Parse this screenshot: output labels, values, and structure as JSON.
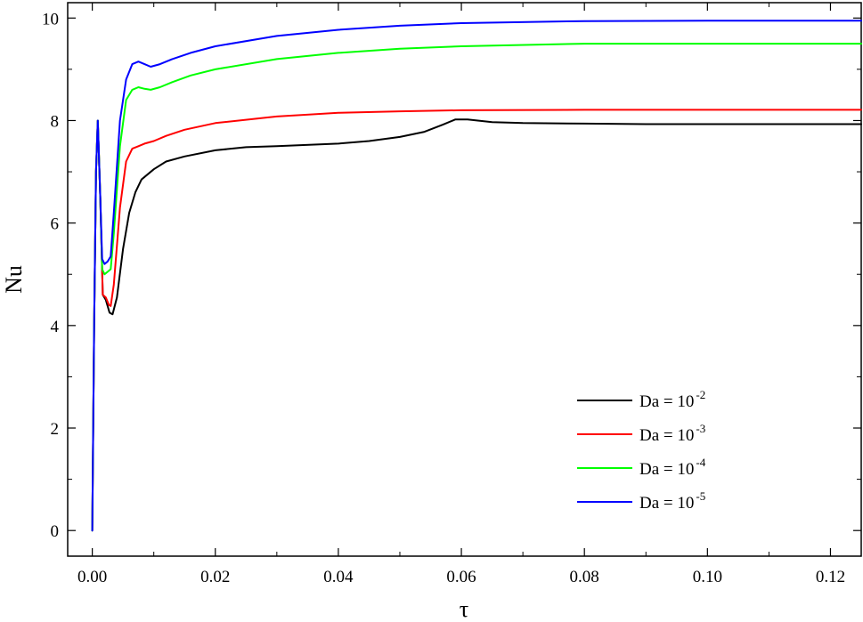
{
  "chart_data": {
    "type": "line",
    "title": "",
    "xlabel": "τ",
    "ylabel": "Nu",
    "xlim": [
      -0.004,
      0.125
    ],
    "ylim": [
      -0.5,
      10.3
    ],
    "xticks": [
      0.0,
      0.02,
      0.04,
      0.06,
      0.08,
      0.1,
      0.12
    ],
    "xtick_labels": [
      "0.00",
      "0.02",
      "0.04",
      "0.06",
      "0.08",
      "0.10",
      "0.12"
    ],
    "yticks": [
      0,
      2,
      4,
      6,
      8,
      10
    ],
    "ytick_labels": [
      "0",
      "2",
      "4",
      "6",
      "8",
      "10"
    ],
    "grid": false,
    "legend_position": "bottom-right",
    "series": [
      {
        "name": "Da = 10-2",
        "label_base": "Da = 10",
        "label_exp": "-2",
        "color": "#000000",
        "points": [
          [
            0.0,
            0.0
          ],
          [
            0.0003,
            4.0
          ],
          [
            0.0006,
            7.0
          ],
          [
            0.0009,
            8.0
          ],
          [
            0.0013,
            6.5
          ],
          [
            0.0017,
            4.6
          ],
          [
            0.0022,
            4.5
          ],
          [
            0.0028,
            4.25
          ],
          [
            0.0033,
            4.22
          ],
          [
            0.004,
            4.55
          ],
          [
            0.005,
            5.5
          ],
          [
            0.006,
            6.2
          ],
          [
            0.007,
            6.6
          ],
          [
            0.008,
            6.85
          ],
          [
            0.01,
            7.05
          ],
          [
            0.012,
            7.2
          ],
          [
            0.015,
            7.3
          ],
          [
            0.02,
            7.42
          ],
          [
            0.025,
            7.48
          ],
          [
            0.03,
            7.5
          ],
          [
            0.04,
            7.55
          ],
          [
            0.045,
            7.6
          ],
          [
            0.05,
            7.68
          ],
          [
            0.054,
            7.78
          ],
          [
            0.057,
            7.92
          ],
          [
            0.059,
            8.02
          ],
          [
            0.061,
            8.02
          ],
          [
            0.065,
            7.97
          ],
          [
            0.07,
            7.95
          ],
          [
            0.08,
            7.94
          ],
          [
            0.09,
            7.93
          ],
          [
            0.1,
            7.93
          ],
          [
            0.11,
            7.93
          ],
          [
            0.125,
            7.93
          ]
        ]
      },
      {
        "name": "Da = 10-3",
        "label_base": "Da = 10",
        "label_exp": "-3",
        "color": "#ff0000",
        "points": [
          [
            0.0,
            0.0
          ],
          [
            0.0003,
            4.0
          ],
          [
            0.0006,
            7.0
          ],
          [
            0.0009,
            8.0
          ],
          [
            0.0013,
            6.5
          ],
          [
            0.0017,
            4.6
          ],
          [
            0.0022,
            4.55
          ],
          [
            0.0027,
            4.4
          ],
          [
            0.003,
            4.38
          ],
          [
            0.0035,
            4.8
          ],
          [
            0.0045,
            6.3
          ],
          [
            0.0055,
            7.2
          ],
          [
            0.0065,
            7.45
          ],
          [
            0.0075,
            7.5
          ],
          [
            0.0085,
            7.55
          ],
          [
            0.01,
            7.6
          ],
          [
            0.012,
            7.7
          ],
          [
            0.015,
            7.82
          ],
          [
            0.02,
            7.95
          ],
          [
            0.03,
            8.08
          ],
          [
            0.04,
            8.15
          ],
          [
            0.05,
            8.18
          ],
          [
            0.06,
            8.2
          ],
          [
            0.08,
            8.21
          ],
          [
            0.1,
            8.21
          ],
          [
            0.125,
            8.21
          ]
        ]
      },
      {
        "name": "Da = 10-4",
        "label_base": "Da = 10",
        "label_exp": "-4",
        "color": "#00ff00",
        "points": [
          [
            0.0,
            0.0
          ],
          [
            0.0003,
            4.0
          ],
          [
            0.0006,
            7.0
          ],
          [
            0.0009,
            8.0
          ],
          [
            0.0013,
            6.5
          ],
          [
            0.0016,
            5.1
          ],
          [
            0.002,
            5.0
          ],
          [
            0.0025,
            5.05
          ],
          [
            0.003,
            5.1
          ],
          [
            0.0035,
            5.8
          ],
          [
            0.0045,
            7.5
          ],
          [
            0.0055,
            8.4
          ],
          [
            0.0065,
            8.6
          ],
          [
            0.0075,
            8.65
          ],
          [
            0.0085,
            8.62
          ],
          [
            0.0095,
            8.6
          ],
          [
            0.011,
            8.65
          ],
          [
            0.013,
            8.75
          ],
          [
            0.016,
            8.88
          ],
          [
            0.02,
            9.0
          ],
          [
            0.03,
            9.2
          ],
          [
            0.04,
            9.32
          ],
          [
            0.05,
            9.4
          ],
          [
            0.06,
            9.45
          ],
          [
            0.08,
            9.5
          ],
          [
            0.1,
            9.5
          ],
          [
            0.125,
            9.5
          ]
        ]
      },
      {
        "name": "Da = 10-5",
        "label_base": "Da = 10",
        "label_exp": "-5",
        "color": "#0000ff",
        "points": [
          [
            0.0,
            0.0
          ],
          [
            0.0003,
            4.0
          ],
          [
            0.0006,
            7.0
          ],
          [
            0.0009,
            8.0
          ],
          [
            0.0013,
            6.5
          ],
          [
            0.0016,
            5.3
          ],
          [
            0.002,
            5.2
          ],
          [
            0.0025,
            5.25
          ],
          [
            0.003,
            5.35
          ],
          [
            0.0035,
            6.2
          ],
          [
            0.0045,
            8.0
          ],
          [
            0.0055,
            8.8
          ],
          [
            0.0065,
            9.1
          ],
          [
            0.0075,
            9.15
          ],
          [
            0.0085,
            9.1
          ],
          [
            0.0095,
            9.05
          ],
          [
            0.011,
            9.1
          ],
          [
            0.013,
            9.2
          ],
          [
            0.016,
            9.32
          ],
          [
            0.02,
            9.45
          ],
          [
            0.03,
            9.65
          ],
          [
            0.04,
            9.77
          ],
          [
            0.05,
            9.85
          ],
          [
            0.06,
            9.9
          ],
          [
            0.08,
            9.94
          ],
          [
            0.1,
            9.95
          ],
          [
            0.125,
            9.95
          ]
        ]
      }
    ]
  }
}
